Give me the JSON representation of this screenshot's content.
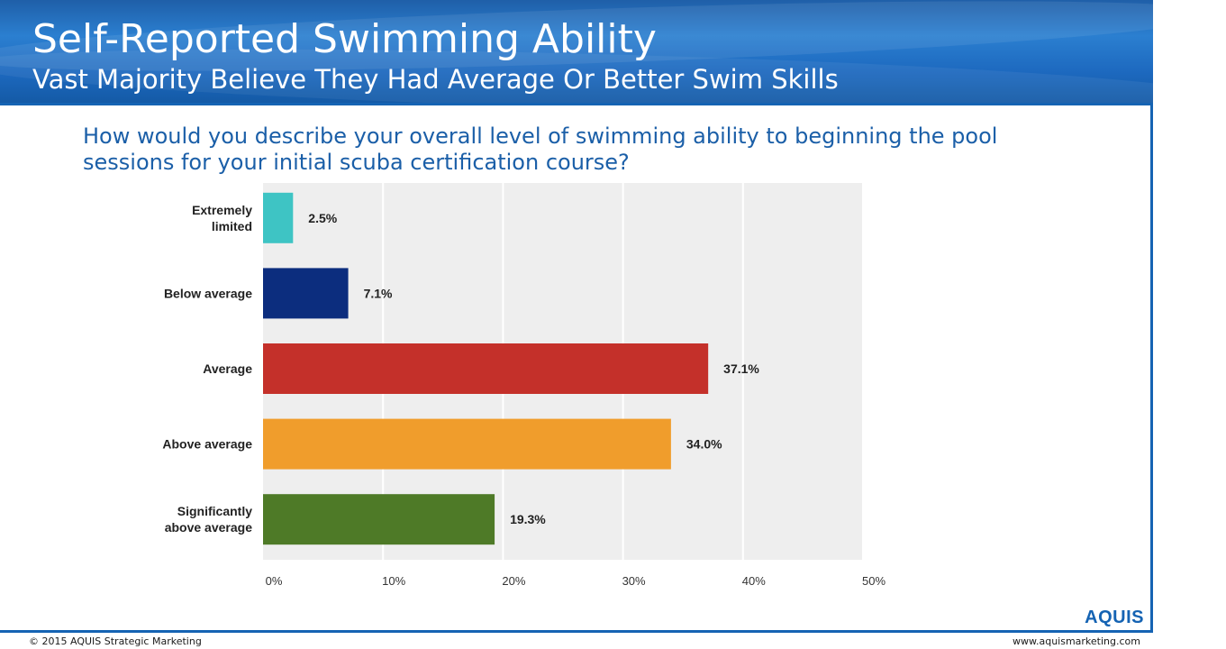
{
  "header": {
    "title": "Self-Reported Swimming Ability",
    "subtitle": "Vast Majority Believe They Had Average Or Better Swim Skills"
  },
  "question": "How would you describe your overall level of swimming ability to beginning the pool sessions for your initial scuba certification course?",
  "chart_data": {
    "type": "bar",
    "orientation": "horizontal",
    "categories": [
      [
        "Extremely",
        "limited"
      ],
      [
        "Below average"
      ],
      [
        "Average"
      ],
      [
        "Above average"
      ],
      [
        "Significantly",
        "above average"
      ]
    ],
    "values": [
      2.5,
      7.1,
      37.1,
      34.0,
      19.3
    ],
    "data_labels": [
      "2.5%",
      "7.1%",
      "37.1%",
      "34.0%",
      "19.3%"
    ],
    "colors": [
      "#3ec4c4",
      "#0c2d7e",
      "#c4302a",
      "#f09d2c",
      "#4e7a27"
    ],
    "xlim": [
      0,
      50
    ],
    "xticks": [
      "0%",
      "10%",
      "20%",
      "30%",
      "40%",
      "50%"
    ],
    "grid": true,
    "title": "",
    "xlabel": "",
    "ylabel": ""
  },
  "footer": {
    "copyright": "© 2015 AQUIS Strategic Marketing",
    "website": "www.aquismarketing.com",
    "logo": "AQUIS"
  }
}
